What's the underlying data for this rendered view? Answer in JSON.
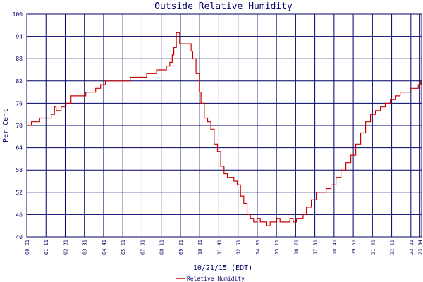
{
  "chart_data": {
    "type": "line",
    "title": "Outside Relative Humidity",
    "xlabel": "10/21/15 (EDT)",
    "ylabel": "Per Cent",
    "ylim": [
      40,
      100
    ],
    "yticks": [
      40,
      46,
      52,
      58,
      64,
      70,
      76,
      82,
      88,
      94,
      100
    ],
    "xlim": [
      0.0167,
      24.0
    ],
    "xtick_labels": [
      "00:01",
      "01:11",
      "02:21",
      "03:31",
      "04:41",
      "05:51",
      "07:01",
      "08:11",
      "09:21",
      "10:31",
      "11:41",
      "12:51",
      "14:01",
      "15:11",
      "16:21",
      "17:31",
      "18:41",
      "19:51",
      "21:01",
      "22:11",
      "23:21",
      "23:54"
    ],
    "xtick_values": [
      0.0167,
      1.1833,
      2.35,
      3.5167,
      4.6833,
      5.85,
      7.0167,
      8.1833,
      9.35,
      10.5167,
      11.6833,
      12.85,
      14.0167,
      15.1833,
      16.35,
      17.5167,
      18.6833,
      19.85,
      21.0167,
      22.1833,
      23.35,
      23.9
    ],
    "grid": true,
    "legend_position": "bottom-center",
    "series": [
      {
        "name": "Relative Humidity",
        "color": "#cc0000",
        "x": [
          0.0,
          0.3,
          0.5,
          0.8,
          1.2,
          1.5,
          1.7,
          1.8,
          2.1,
          2.4,
          2.7,
          3.0,
          3.3,
          3.6,
          3.9,
          4.2,
          4.5,
          4.8,
          5.2,
          5.6,
          5.9,
          6.3,
          6.7,
          7.0,
          7.3,
          7.6,
          7.9,
          8.2,
          8.5,
          8.7,
          8.85,
          8.95,
          9.1,
          9.3,
          9.6,
          9.8,
          10.0,
          10.1,
          10.3,
          10.5,
          10.6,
          10.8,
          11.0,
          11.2,
          11.4,
          11.6,
          11.8,
          12.0,
          12.2,
          12.4,
          12.6,
          12.8,
          13.0,
          13.2,
          13.4,
          13.6,
          13.8,
          14.0,
          14.2,
          14.4,
          14.6,
          14.8,
          15.0,
          15.2,
          15.4,
          15.6,
          15.8,
          16.0,
          16.2,
          16.4,
          16.6,
          16.8,
          17.0,
          17.3,
          17.6,
          17.9,
          18.2,
          18.5,
          18.8,
          19.1,
          19.4,
          19.7,
          20.0,
          20.3,
          20.6,
          20.9,
          21.2,
          21.5,
          21.8,
          22.1,
          22.4,
          22.7,
          23.0,
          23.3,
          23.6,
          23.8,
          23.95
        ],
        "values": [
          70,
          71,
          71,
          72,
          72,
          73,
          75,
          74,
          75,
          76,
          78,
          78,
          78,
          79,
          79,
          80,
          81,
          82,
          82,
          82,
          82,
          83,
          83,
          83,
          84,
          84,
          85,
          85,
          86,
          87,
          89,
          91,
          95,
          92,
          92,
          92,
          90,
          88,
          84,
          79,
          76,
          72,
          71,
          69,
          65,
          63,
          59,
          57,
          56,
          56,
          55,
          54,
          51,
          49,
          46,
          45,
          44,
          45,
          44,
          44,
          43,
          44,
          44,
          45,
          44,
          44,
          44,
          45,
          44,
          45,
          45,
          46,
          48,
          50,
          52,
          52,
          53,
          54,
          56,
          58,
          60,
          62,
          65,
          68,
          71,
          73,
          74,
          75,
          76,
          77,
          78,
          79,
          79,
          80,
          80,
          81,
          82
        ]
      }
    ]
  }
}
